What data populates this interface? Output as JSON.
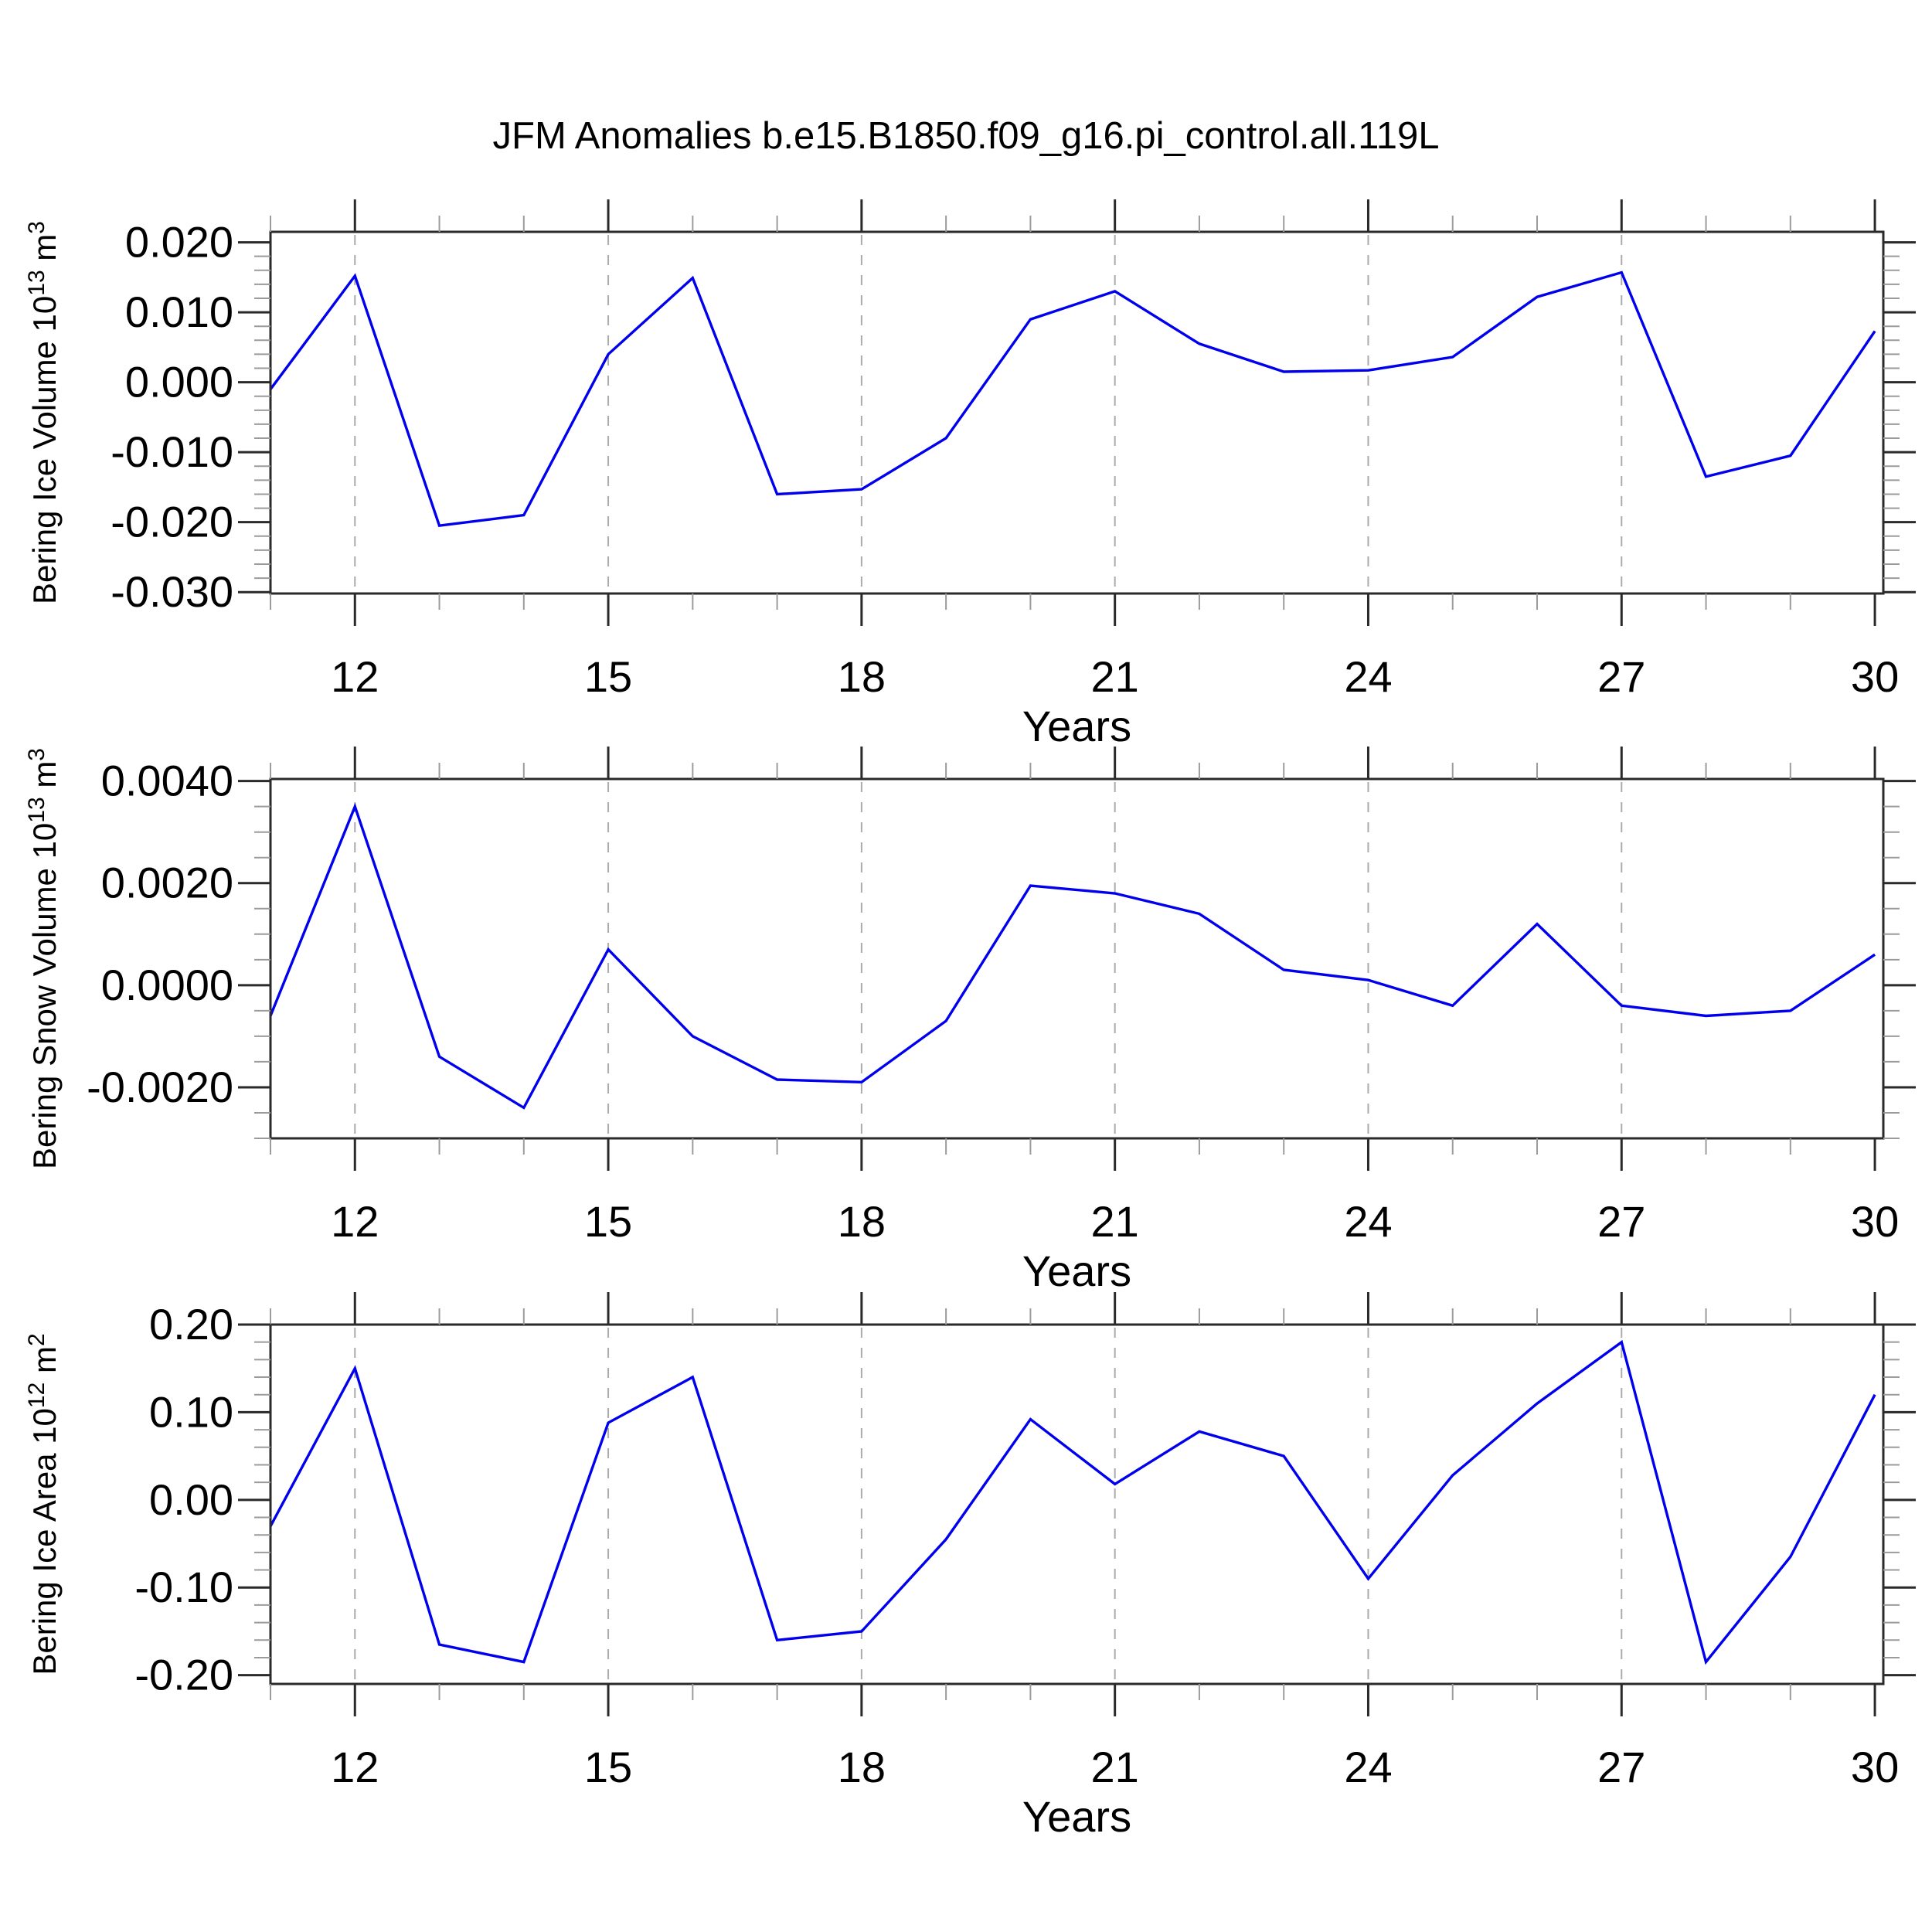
{
  "page": {
    "title": "JFM Anomalies b.e15.B1850.f09_g16.pi_control.all.119L"
  },
  "colors": {
    "line": "#0000ee",
    "axis": "#2a2a2a",
    "minor_tick": "#9b9b9b",
    "grid": "#ababab",
    "text": "#000000",
    "background": "#ffffff"
  },
  "chart_data": [
    {
      "type": "line",
      "name": "bering-ice-volume",
      "ylabel": "Bering Ice Volume 10^13 m^3",
      "ylabel_segments": [
        {
          "text": "Bering Ice Volume 10",
          "sup": false
        },
        {
          "text": "13",
          "sup": true
        },
        {
          "text": " m",
          "sup": false
        },
        {
          "text": "3",
          "sup": true
        }
      ],
      "xlabel": "Years",
      "x": [
        11,
        12,
        13,
        14,
        15,
        16,
        17,
        18,
        19,
        20,
        21,
        22,
        23,
        24,
        25,
        26,
        27,
        28,
        29,
        30
      ],
      "values": [
        -0.001,
        0.0152,
        -0.0205,
        -0.019,
        0.004,
        0.0149,
        -0.016,
        -0.0153,
        -0.008,
        0.009,
        0.013,
        0.0055,
        0.0015,
        0.0017,
        0.0036,
        0.0122,
        0.0157,
        -0.0135,
        -0.0105,
        0.0073
      ],
      "xlim": [
        11,
        30.1
      ],
      "ylim": [
        -0.0302,
        0.0215
      ],
      "xticks": {
        "values": [
          12,
          15,
          18,
          21,
          24,
          27,
          30
        ],
        "labels": [
          "12",
          "15",
          "18",
          "21",
          "24",
          "27",
          "30"
        ]
      },
      "yticks": {
        "values": [
          0.02,
          0.01,
          0,
          -0.01,
          -0.02,
          -0.03
        ],
        "labels": [
          "0.020",
          "0.010",
          "0.000",
          "-0.010",
          "-0.020",
          "-0.030"
        ]
      },
      "yminor_step": 0.002,
      "xminor_step": 1,
      "gridlines": [
        12,
        15,
        18,
        21,
        24,
        27
      ],
      "grid": true
    },
    {
      "type": "line",
      "name": "bering-snow-volume",
      "ylabel": "Bering Snow Volume 10^13 m^3",
      "ylabel_segments": [
        {
          "text": "Bering Snow Volume 10",
          "sup": false
        },
        {
          "text": "13",
          "sup": true
        },
        {
          "text": " m",
          "sup": false
        },
        {
          "text": "3",
          "sup": true
        }
      ],
      "xlabel": "Years",
      "x": [
        11,
        12,
        13,
        14,
        15,
        16,
        17,
        18,
        19,
        20,
        21,
        22,
        23,
        24,
        25,
        26,
        27,
        28,
        29,
        30
      ],
      "values": [
        -0.0006,
        0.0035,
        -0.0014,
        -0.0024,
        0.0007,
        -0.001,
        -0.00185,
        -0.0019,
        -0.0007,
        0.00195,
        0.0018,
        0.0014,
        0.0003,
        0.0001,
        -0.0004,
        0.0012,
        -0.0004,
        -0.0006,
        -0.0005,
        0.0006
      ],
      "xlim": [
        11,
        30.1
      ],
      "ylim": [
        -0.003,
        0.00404
      ],
      "xticks": {
        "values": [
          12,
          15,
          18,
          21,
          24,
          27,
          30
        ],
        "labels": [
          "12",
          "15",
          "18",
          "21",
          "24",
          "27",
          "30"
        ]
      },
      "yticks": {
        "values": [
          0.004,
          0.002,
          0,
          -0.002
        ],
        "labels": [
          "0.0040",
          "0.0020",
          "0.0000",
          "-0.0020"
        ]
      },
      "yminor_step": 0.0005,
      "xminor_step": 1,
      "gridlines": [
        12,
        15,
        18,
        21,
        24,
        27
      ],
      "grid": true
    },
    {
      "type": "line",
      "name": "bering-ice-area",
      "ylabel": "Bering Ice Area 10^12 m^2",
      "ylabel_segments": [
        {
          "text": "Bering Ice Area 10",
          "sup": false
        },
        {
          "text": "12",
          "sup": true
        },
        {
          "text": " m",
          "sup": false
        },
        {
          "text": "2",
          "sup": true
        }
      ],
      "xlabel": "Years",
      "x": [
        11,
        12,
        13,
        14,
        15,
        16,
        17,
        18,
        19,
        20,
        21,
        22,
        23,
        24,
        25,
        26,
        27,
        28,
        29,
        30
      ],
      "values": [
        -0.03,
        0.15,
        -0.165,
        -0.185,
        0.088,
        0.14,
        -0.16,
        -0.15,
        -0.045,
        0.092,
        0.018,
        0.078,
        0.05,
        -0.09,
        0.028,
        0.11,
        0.18,
        -0.185,
        -0.065,
        0.12
      ],
      "xlim": [
        11,
        30.1
      ],
      "ylim": [
        -0.21,
        0.2
      ],
      "xticks": {
        "values": [
          12,
          15,
          18,
          21,
          24,
          27,
          30
        ],
        "labels": [
          "12",
          "15",
          "18",
          "21",
          "24",
          "27",
          "30"
        ]
      },
      "yticks": {
        "values": [
          0.2,
          0.1,
          0,
          -0.1,
          -0.2
        ],
        "labels": [
          "0.20",
          "0.10",
          "0.00",
          "-0.10",
          "-0.20"
        ]
      },
      "yminor_step": 0.02,
      "xminor_step": 1,
      "gridlines": [
        12,
        15,
        18,
        21,
        24,
        27
      ],
      "grid": true
    }
  ]
}
